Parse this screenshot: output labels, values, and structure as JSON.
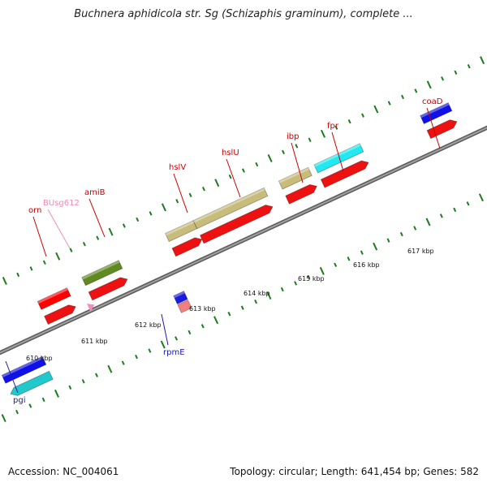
{
  "title": "Buchnera aphidicola str. Sg (Schizaphis graminum), complete ...",
  "footer": {
    "accession": "Accession: NC_004061",
    "summary": "Topology: circular; Length: 641,454 bp; Genes: 582"
  },
  "colors": {
    "backbone": "#7a7a7a",
    "tick": "#1e7b1e",
    "label_red": "#cc0000",
    "label_pink": "#f08cb4",
    "label_blue": "#1a1aa8"
  },
  "scale_labels": [
    "610 kbp",
    "611 kbp",
    "612 kbp",
    "613 kbp",
    "614 kbp",
    "615 kbp",
    "616 kbp",
    "617 kbp"
  ],
  "genes": [
    {
      "name": "orn",
      "strand": "+",
      "color": "#cc0000",
      "fill": "#ff0000"
    },
    {
      "name": "BUsg612",
      "strand": "+",
      "color": "#f08cb4",
      "fill": "#f090c0"
    },
    {
      "name": "amiB",
      "strand": "+",
      "color": "#cc0000",
      "fill": "#5f8a1f"
    },
    {
      "name": "hslV",
      "strand": "+",
      "color": "#cc0000",
      "fill": "#c8bc7a"
    },
    {
      "name": "hslU",
      "strand": "+",
      "color": "#cc0000",
      "fill": "#c8bc7a"
    },
    {
      "name": "ibp",
      "strand": "+",
      "color": "#cc0000",
      "fill": "#c8bc7a"
    },
    {
      "name": "fpr",
      "strand": "+",
      "color": "#cc0000",
      "fill": "#22e8f0"
    },
    {
      "name": "coaD",
      "strand": "+",
      "color": "#cc0000",
      "fill": "#1010e8"
    },
    {
      "name": "rpmE",
      "strand": "-",
      "color": "#1a1aa8",
      "fill": "#1a1ae0"
    },
    {
      "name": "pgi",
      "strand": "-",
      "color": "#1a1aa8",
      "fill": "#1010e8"
    }
  ]
}
